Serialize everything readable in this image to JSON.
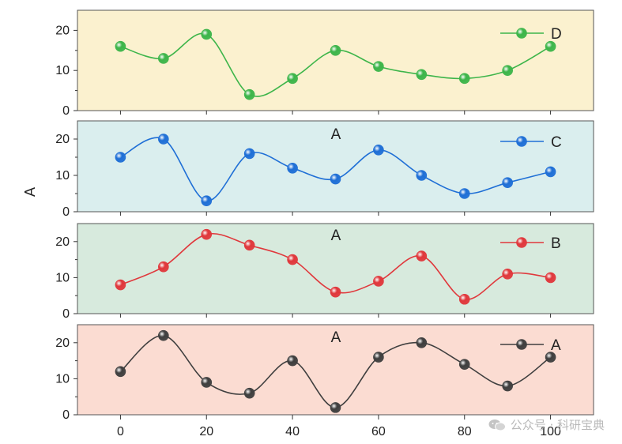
{
  "chart_data": {
    "type": "line",
    "ylabel": "A",
    "x": [
      0,
      10,
      20,
      30,
      40,
      50,
      60,
      70,
      80,
      90,
      100
    ],
    "xlim": [
      -10,
      110
    ],
    "xticks": [
      "0",
      "20",
      "40",
      "60",
      "80",
      "100"
    ],
    "yticks": [
      "0",
      "10",
      "20"
    ],
    "ylim": [
      0,
      25
    ],
    "grid": false,
    "legend_position": "top-right",
    "panels": [
      {
        "series": "D",
        "color": "#3db54a",
        "background": "#fbf1cf",
        "annotation": "",
        "values": [
          16,
          13,
          19,
          4,
          8,
          15,
          11,
          9,
          8,
          10,
          16
        ]
      },
      {
        "series": "C",
        "color": "#1f6fd6",
        "background": "#daeeee",
        "annotation": "A",
        "values": [
          15,
          20,
          3,
          16,
          12,
          9,
          17,
          10,
          5,
          8,
          11
        ]
      },
      {
        "series": "B",
        "color": "#e0383c",
        "background": "#d7eadd",
        "annotation": "A",
        "values": [
          8,
          13,
          22,
          19,
          15,
          6,
          9,
          16,
          4,
          11,
          10
        ]
      },
      {
        "series": "A",
        "color": "#3f3f3f",
        "background": "#fbdcd2",
        "annotation": "A",
        "values": [
          12,
          22,
          9,
          6,
          15,
          2,
          16,
          20,
          14,
          8,
          16
        ]
      }
    ]
  },
  "watermark": {
    "text": "公众号 · 科研宝典",
    "icon": "wechat-icon"
  }
}
